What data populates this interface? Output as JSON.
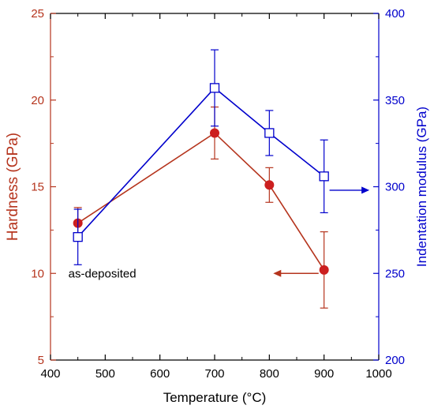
{
  "colors": {
    "hardness": "#b5341d",
    "hardness_marker": "#cc1f1f",
    "modulus": "#0000cc",
    "text": "#000000"
  },
  "chart_data": {
    "type": "line",
    "title": "",
    "xlabel": "Temperature (°C)",
    "ylabel_left": "Hardness (GPa)",
    "ylabel_right": "Indentation modulus (GPa)",
    "xlim": [
      400,
      1000
    ],
    "ylim_left": [
      5,
      25
    ],
    "ylim_right": [
      200,
      400
    ],
    "x_ticks": [
      400,
      500,
      600,
      700,
      800,
      900,
      1000
    ],
    "y_left_ticks": [
      5,
      10,
      15,
      20,
      25
    ],
    "y_right_ticks": [
      200,
      250,
      300,
      350,
      400
    ],
    "grid": false,
    "legend": "none",
    "series": [
      {
        "axis": "left",
        "marker": "filled-circle",
        "x": [
          450,
          700,
          800,
          900
        ],
        "y": [
          12.9,
          18.1,
          15.1,
          10.2
        ],
        "err": [
          0.9,
          1.5,
          1.0,
          2.2
        ]
      },
      {
        "axis": "right",
        "marker": "open-square",
        "x": [
          450,
          700,
          800,
          900
        ],
        "y": [
          271,
          357,
          331,
          306
        ],
        "err": [
          16,
          22,
          13,
          21
        ]
      }
    ],
    "annotations": [
      {
        "text": "as-deposited",
        "x": 450,
        "y_left": 10
      }
    ],
    "arrows": [
      {
        "series": "modulus",
        "direction": "right",
        "x_from": 910,
        "x_to": 980,
        "y_left": 14.8
      },
      {
        "series": "hardness",
        "direction": "left",
        "x_from": 890,
        "x_to": 810,
        "y_left": 10.0
      }
    ]
  }
}
